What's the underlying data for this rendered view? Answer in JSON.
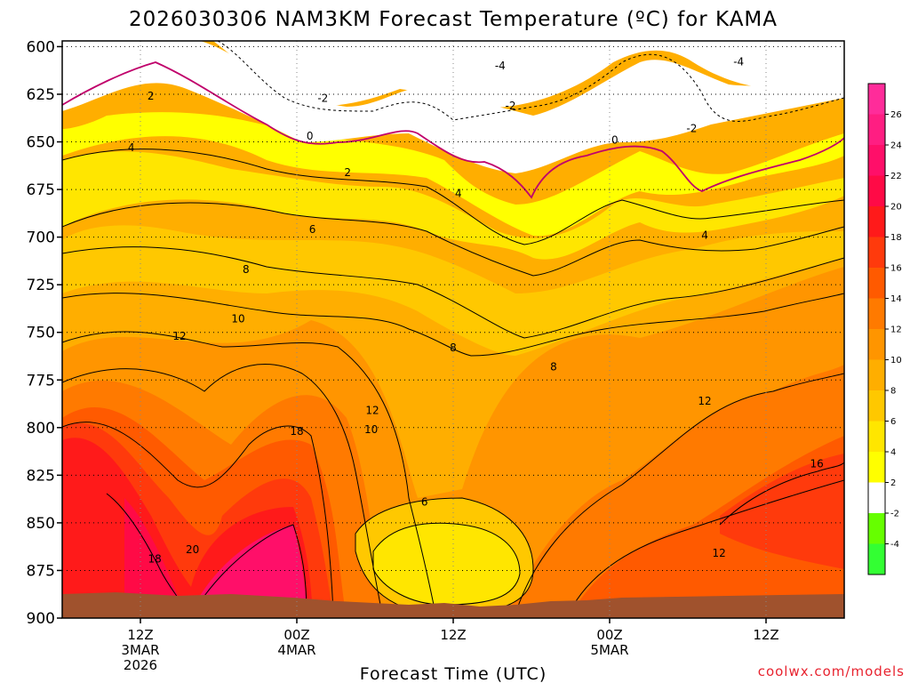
{
  "chart_data": {
    "type": "heatmap",
    "title": "2026030306 NAM3KM Forecast Temperature (ºC) for KAMA",
    "xlabel": "Forecast Time (UTC)",
    "ylabel": "",
    "y_axis": {
      "scale": "linear-inverted",
      "ylim": [
        900,
        597
      ],
      "ticks": [
        "600",
        "625",
        "650",
        "675",
        "700",
        "725",
        "750",
        "775",
        "800",
        "825",
        "850",
        "875",
        "900"
      ]
    },
    "x_axis": {
      "xlim_hours": [
        6,
        66
      ],
      "ticks": [
        {
          "hour": 12,
          "lines": [
            "12Z",
            "3MAR",
            "2026"
          ]
        },
        {
          "hour": 24,
          "lines": [
            "00Z",
            "4MAR"
          ]
        },
        {
          "hour": 36,
          "lines": [
            "12Z"
          ]
        },
        {
          "hour": 48,
          "lines": [
            "00Z",
            "5MAR"
          ]
        },
        {
          "hour": 60,
          "lines": [
            "12Z"
          ]
        }
      ]
    },
    "grid": true,
    "colorbar": {
      "placement": "right",
      "tick_labels": [
        "26",
        "24",
        "22",
        "20",
        "18",
        "16",
        "14",
        "12",
        "10",
        "8",
        "6",
        "4",
        "2",
        "-2",
        "-4"
      ],
      "bands": [
        {
          "from": 26,
          "to": 28,
          "color": "#ff2c9a"
        },
        {
          "from": 24,
          "to": 26,
          "color": "#ff1e82"
        },
        {
          "from": 22,
          "to": 24,
          "color": "#ff0f69"
        },
        {
          "from": 20,
          "to": 22,
          "color": "#ff0a46"
        },
        {
          "from": 18,
          "to": 20,
          "color": "#ff1a1a"
        },
        {
          "from": 16,
          "to": 18,
          "color": "#ff3a0c"
        },
        {
          "from": 14,
          "to": 16,
          "color": "#ff5a00"
        },
        {
          "from": 12,
          "to": 14,
          "color": "#ff7a00"
        },
        {
          "from": 10,
          "to": 12,
          "color": "#ff9500"
        },
        {
          "from": 8,
          "to": 10,
          "color": "#ffae00"
        },
        {
          "from": 6,
          "to": 8,
          "color": "#ffc800"
        },
        {
          "from": 4,
          "to": 6,
          "color": "#ffe600"
        },
        {
          "from": 2,
          "to": 4,
          "color": "#ffff00"
        },
        {
          "from": -2,
          "to": 2,
          "color": "#ffffff"
        },
        {
          "from": -4,
          "to": -2,
          "color": "#66ff00"
        },
        {
          "from": -6,
          "to": -4,
          "color": "#33ff33"
        }
      ]
    },
    "ground_color": "#a0522d",
    "contour_labels": [
      {
        "text": "-4",
        "hour": 39.6,
        "p": 610
      },
      {
        "text": "-4",
        "hour": 57.9,
        "p": 608
      },
      {
        "text": "-2",
        "hour": 26.0,
        "p": 627
      },
      {
        "text": "-2",
        "hour": 40.4,
        "p": 631
      },
      {
        "text": "-2",
        "hour": 54.3,
        "p": 643
      },
      {
        "text": "0",
        "hour": 25.0,
        "p": 647
      },
      {
        "text": "0",
        "hour": 48.4,
        "p": 649
      },
      {
        "text": "2",
        "hour": 12.8,
        "p": 626
      },
      {
        "text": "2",
        "hour": 27.9,
        "p": 666
      },
      {
        "text": "4",
        "hour": 11.3,
        "p": 653
      },
      {
        "text": "4",
        "hour": 36.4,
        "p": 677
      },
      {
        "text": "4",
        "hour": 55.3,
        "p": 699
      },
      {
        "text": "6",
        "hour": 25.2,
        "p": 696
      },
      {
        "text": "8",
        "hour": 20.1,
        "p": 717
      },
      {
        "text": "8",
        "hour": 36.0,
        "p": 758
      },
      {
        "text": "8",
        "hour": 43.7,
        "p": 768
      },
      {
        "text": "10",
        "hour": 19.5,
        "p": 743
      },
      {
        "text": "10",
        "hour": 29.7,
        "p": 801
      },
      {
        "text": "12",
        "hour": 15.0,
        "p": 752
      },
      {
        "text": "12",
        "hour": 29.8,
        "p": 791
      },
      {
        "text": "12",
        "hour": 55.3,
        "p": 786
      },
      {
        "text": "12",
        "hour": 56.4,
        "p": 866
      },
      {
        "text": "16",
        "hour": 63.9,
        "p": 819
      },
      {
        "text": "18",
        "hour": 24.0,
        "p": 802
      },
      {
        "text": "18",
        "hour": 13.1,
        "p": 869
      },
      {
        "text": "20",
        "hour": 16.0,
        "p": 864
      },
      {
        "text": "6",
        "hour": 33.8,
        "p": 839
      }
    ]
  },
  "credit": "coolwx.com/models"
}
